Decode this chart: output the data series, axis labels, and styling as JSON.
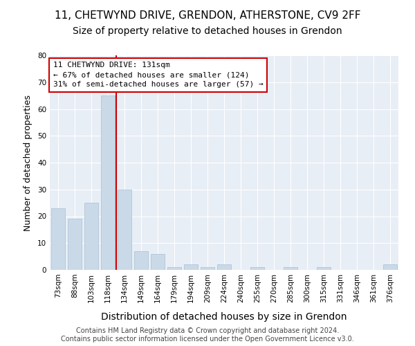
{
  "title_line1": "11, CHETWYND DRIVE, GRENDON, ATHERSTONE, CV9 2FF",
  "title_line2": "Size of property relative to detached houses in Grendon",
  "xlabel": "Distribution of detached houses by size in Grendon",
  "ylabel": "Number of detached properties",
  "categories": [
    "73sqm",
    "88sqm",
    "103sqm",
    "118sqm",
    "134sqm",
    "149sqm",
    "164sqm",
    "179sqm",
    "194sqm",
    "209sqm",
    "224sqm",
    "240sqm",
    "255sqm",
    "270sqm",
    "285sqm",
    "300sqm",
    "315sqm",
    "331sqm",
    "346sqm",
    "361sqm",
    "376sqm"
  ],
  "values": [
    23,
    19,
    25,
    65,
    30,
    7,
    6,
    1,
    2,
    1,
    2,
    0,
    1,
    0,
    1,
    0,
    1,
    0,
    0,
    0,
    2
  ],
  "bar_color": "#c9d9e8",
  "bar_edgecolor": "#a8bfd4",
  "vline_index": 3.5,
  "vline_color": "#cc0000",
  "annotation_line1": "11 CHETWYND DRIVE: 131sqm",
  "annotation_line2": "← 67% of detached houses are smaller (124)",
  "annotation_line3": "31% of semi-detached houses are larger (57) →",
  "annotation_box_facecolor": "#ffffff",
  "annotation_box_edgecolor": "#cc0000",
  "ylim": [
    0,
    80
  ],
  "yticks": [
    0,
    10,
    20,
    30,
    40,
    50,
    60,
    70,
    80
  ],
  "plot_bg_color": "#e8eef5",
  "grid_color": "#ffffff",
  "footer_line1": "Contains HM Land Registry data © Crown copyright and database right 2024.",
  "footer_line2": "Contains public sector information licensed under the Open Government Licence v3.0.",
  "title_fontsize": 11,
  "subtitle_fontsize": 10,
  "xlabel_fontsize": 10,
  "ylabel_fontsize": 9,
  "tick_fontsize": 7.5,
  "annotation_fontsize": 8,
  "footer_fontsize": 7
}
